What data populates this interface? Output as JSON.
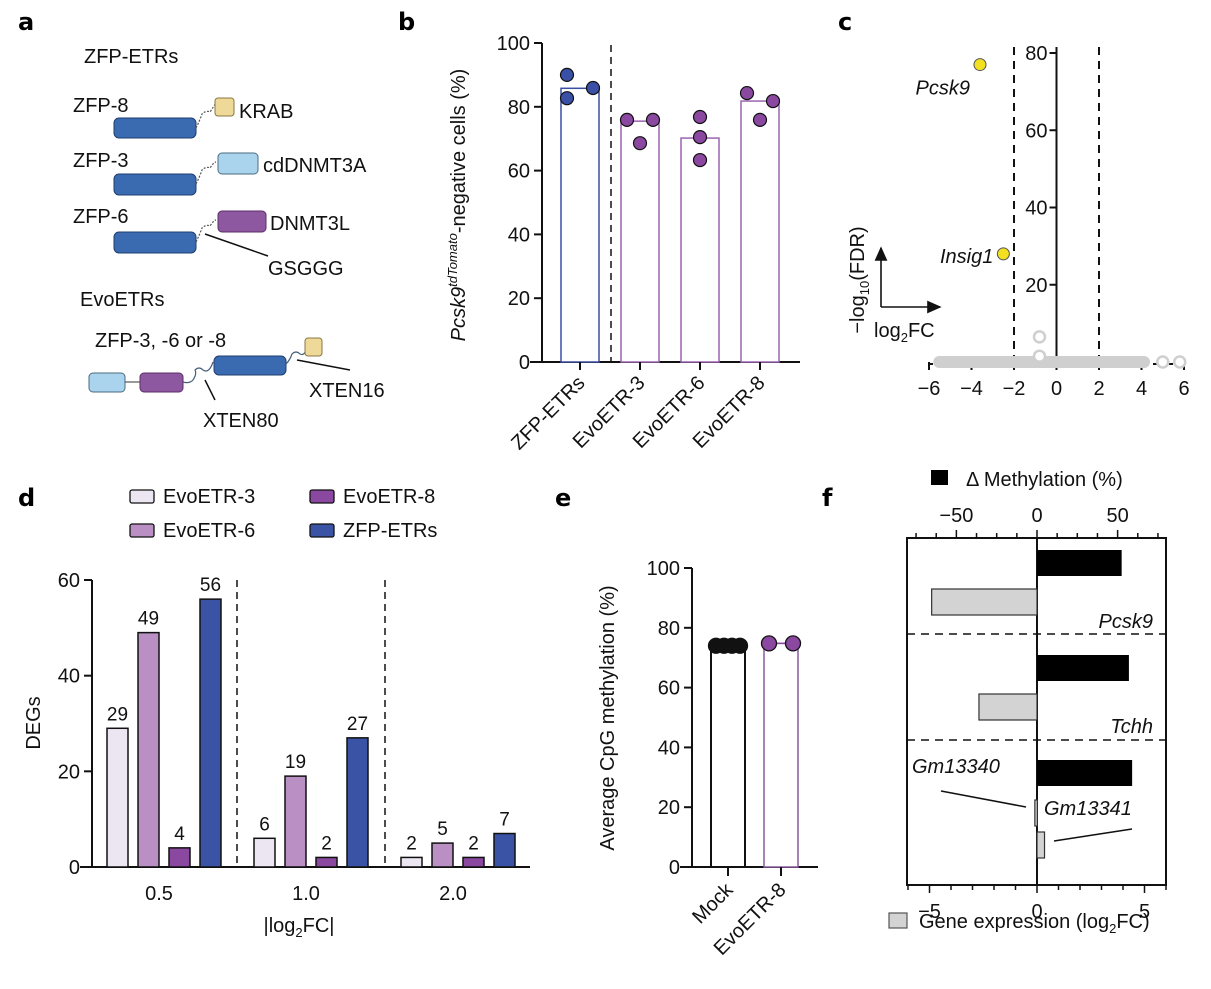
{
  "panel_labels": [
    "a",
    "b",
    "c",
    "d",
    "e",
    "f"
  ],
  "panel_a": {
    "zfp_etrs_title": "ZFP-ETRs",
    "constructs": [
      {
        "zfp": "ZFP-8",
        "effector": "KRAB",
        "effector_color": "#efd998"
      },
      {
        "zfp": "ZFP-3",
        "effector": "cdDNMT3A",
        "effector_color": "#aad4ee"
      },
      {
        "zfp": "ZFP-6",
        "effector": "DNMT3L",
        "effector_color": "#8e58a0"
      }
    ],
    "linker_label": "GSGGG",
    "evoetrs_title": "EvoETRs",
    "evo_zfp_label": "ZFP-3, -6 or -8",
    "xten80_label": "XTEN80",
    "xten16_label": "XTEN16",
    "zfp_color": "#3a6aaf"
  },
  "chart_data": [
    {
      "id": "b",
      "type": "bar",
      "ylabel_italic": "Pcsk9",
      "ylabel_sup": "tdTomato",
      "ylabel_rest": "-negative cells (%)",
      "categories": [
        "ZFP-ETRs",
        "EvoETR-3",
        "EvoETR-6",
        "EvoETR-8"
      ],
      "values": [
        85.8,
        75.5,
        70.2,
        81.8
      ],
      "points": [
        [
          90.0,
          82.7,
          85.9
        ],
        [
          75.9,
          68.6,
          75.9
        ],
        [
          76.8,
          70.5,
          63.3
        ],
        [
          84.3,
          75.9,
          81.8
        ]
      ],
      "colors": [
        "#3a4fa0",
        "#9a64b0",
        "#9a64b0",
        "#9a64b0"
      ],
      "point_colors": [
        "#3a4fa6",
        "#8a48a0",
        "#8a48a0",
        "#8a48a0"
      ],
      "ylim": [
        0,
        100
      ],
      "yticks": [
        0,
        20,
        40,
        60,
        80,
        100
      ]
    },
    {
      "id": "c",
      "type": "scatter",
      "xlabel": "log2FC",
      "ylabel": "-log10(FDR)",
      "xlim": [
        -6,
        6
      ],
      "ylim": [
        0,
        80
      ],
      "xticks": [
        -6,
        -4,
        -2,
        0,
        2,
        4,
        6
      ],
      "yticks": [
        20,
        40,
        60,
        80
      ],
      "thresholds_x": [
        -2,
        2
      ],
      "highlighted": [
        {
          "label": "Pcsk9",
          "x": -3.6,
          "y": 77,
          "color": "#f3e021"
        },
        {
          "label": "Insig1",
          "x": -2.5,
          "y": 28,
          "color": "#f3e021"
        }
      ],
      "background_points": [
        {
          "x": -0.8,
          "y": 6.5
        },
        {
          "x": -0.8,
          "y": 1.5
        },
        {
          "x": 5.0,
          "y": 0
        },
        {
          "x": 5.8,
          "y": 0
        }
      ],
      "background_band": {
        "x_from": -5.8,
        "x_to": 4.4,
        "y": 0
      },
      "background_color": "#cfcfcf"
    },
    {
      "id": "d",
      "type": "bar",
      "xlabel": "|log2FC|",
      "ylabel": "DEGs",
      "categories": [
        "0.5",
        "1.0",
        "2.0"
      ],
      "series": [
        {
          "name": "EvoETR-3",
          "color": "#ece6f3",
          "values": [
            29,
            6,
            2
          ]
        },
        {
          "name": "EvoETR-6",
          "color": "#b98fc4",
          "values": [
            49,
            19,
            5
          ]
        },
        {
          "name": "EvoETR-8",
          "color": "#8a48a0",
          "values": [
            4,
            2,
            2
          ]
        },
        {
          "name": "ZFP-ETRs",
          "color": "#3a53a4",
          "values": [
            56,
            27,
            7
          ]
        }
      ],
      "legend_order": [
        "EvoETR-3",
        "EvoETR-8",
        "EvoETR-6",
        "ZFP-ETRs"
      ],
      "ylim": [
        0,
        60
      ],
      "yticks": [
        0,
        20,
        40,
        60
      ]
    },
    {
      "id": "e",
      "type": "bar",
      "ylabel": "Average CpG methylation (%)",
      "categories": [
        "Mock",
        "EvoETR-8"
      ],
      "values": [
        74,
        74.8
      ],
      "points": [
        [
          74,
          74,
          74,
          74
        ],
        [
          74.8,
          74.8
        ]
      ],
      "colors": [
        "#111111",
        "#8a5a9e"
      ],
      "point_colors": [
        "#111111",
        "#8a48a0"
      ],
      "ylim": [
        0,
        100
      ],
      "yticks": [
        0,
        20,
        40,
        60,
        80,
        100
      ]
    },
    {
      "id": "f",
      "type": "bar",
      "orientation": "horizontal",
      "top_axis_label": "Δ Methylation (%)",
      "bottom_axis_label": "Gene expression (log2FC)",
      "top_xlim": [
        -80,
        80
      ],
      "top_xticks": [
        -50,
        0,
        50
      ],
      "bottom_xlim": [
        -6,
        6
      ],
      "bottom_xticks": [
        -5,
        0,
        5
      ],
      "genes": [
        {
          "name": "Pcsk9",
          "methylation": 52.5,
          "expression": -4.9
        },
        {
          "name": "Tchh",
          "methylation": 57,
          "expression": -2.7
        },
        {
          "name": "Gm13340",
          "methylation": 59,
          "expression": -0.1
        },
        {
          "name": "Gm13341",
          "methylation": null,
          "expression": 0.35
        }
      ],
      "methylation_color": "#000000",
      "expression_color": "#d3d3d3"
    }
  ]
}
